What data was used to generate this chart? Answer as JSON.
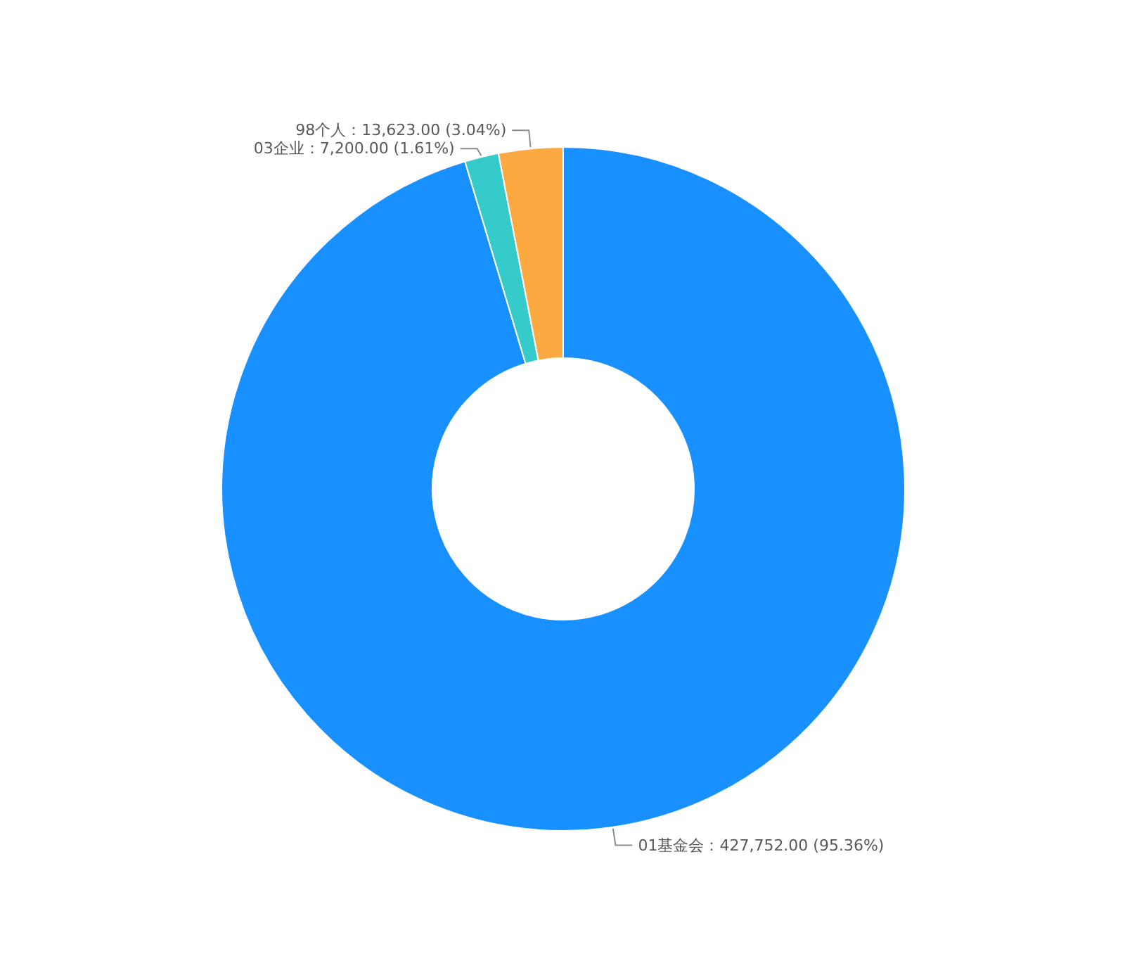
{
  "chart_data": {
    "type": "donut",
    "categories": [
      "01基金会",
      "03企业",
      "98个人"
    ],
    "values": [
      427752,
      7200,
      13623
    ],
    "colors": [
      "#1890ff",
      "#36cbcb",
      "#fbaa41"
    ],
    "value_labels": [
      "：427,752.00 (95.36%)",
      "：7,200.00 (1.61%)",
      "：13,623.00 (3.04%)"
    ]
  }
}
